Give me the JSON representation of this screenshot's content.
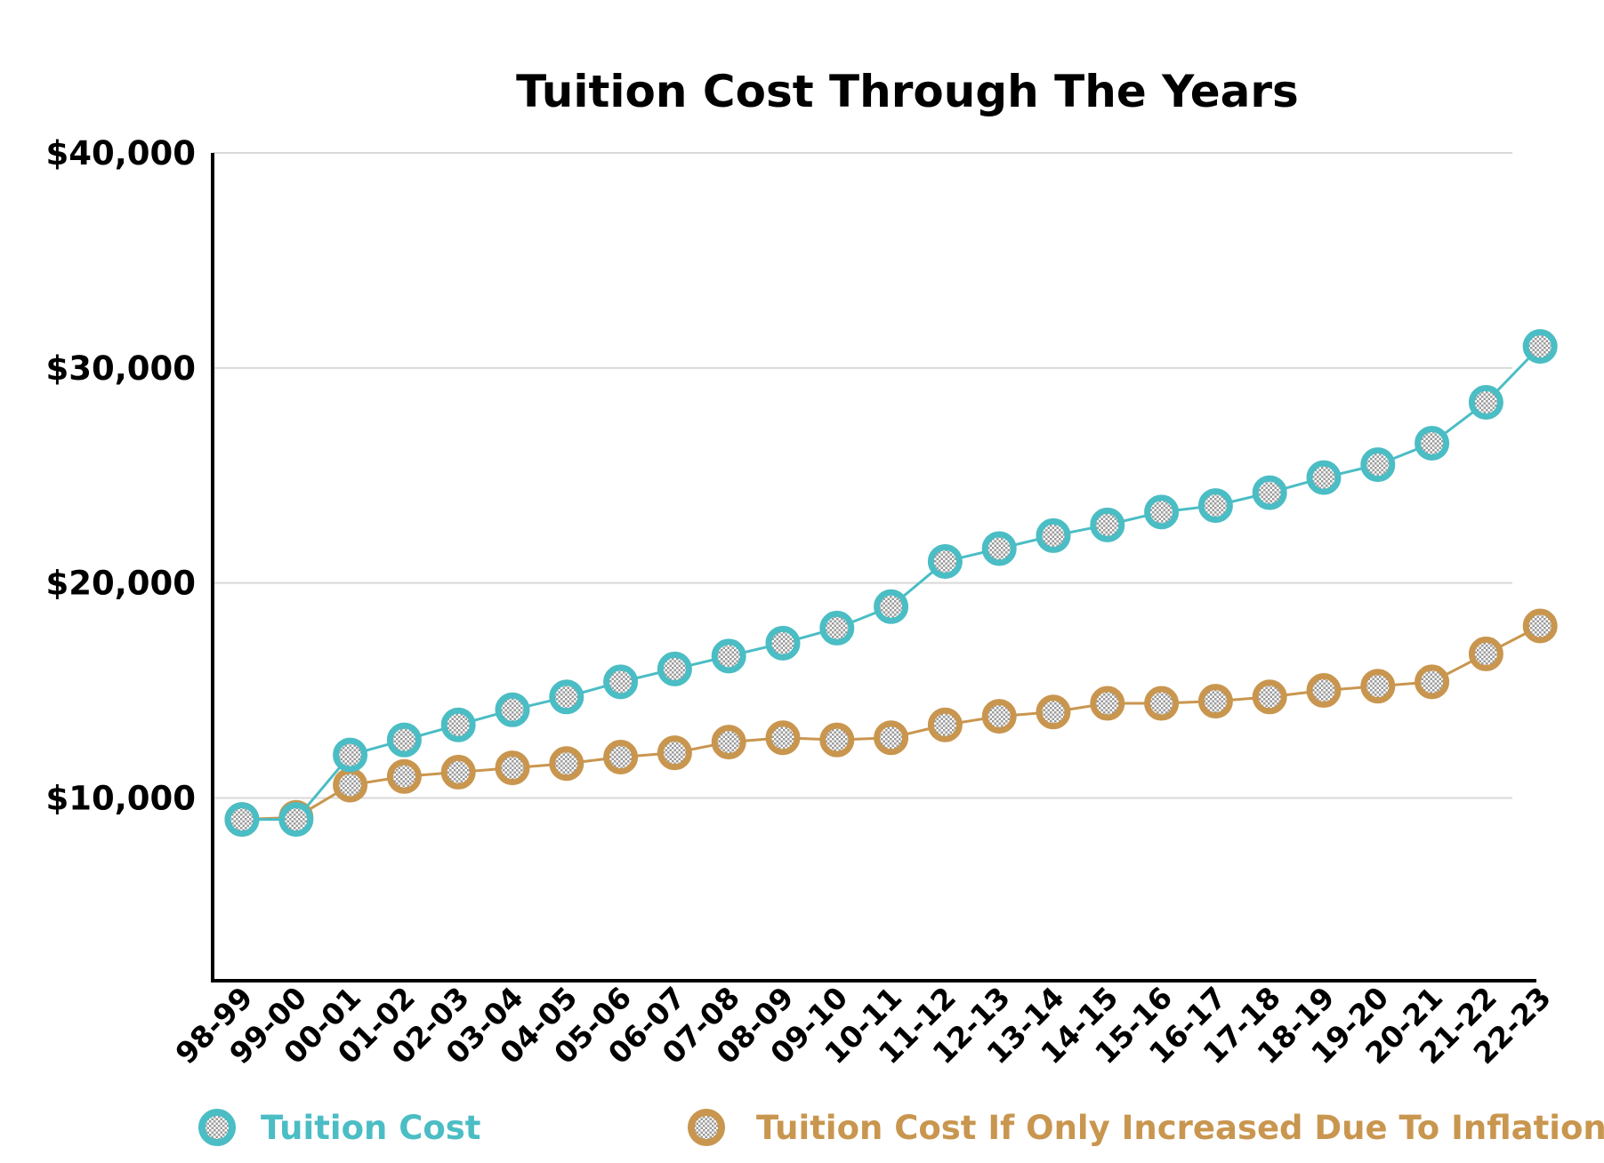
{
  "chart_data": {
    "type": "line",
    "title": "Tuition Cost Through The Years",
    "xlabel": "",
    "ylabel": "",
    "categories": [
      "98-99",
      "99-00",
      "00-01",
      "01-02",
      "02-03",
      "03-04",
      "04-05",
      "05-06",
      "06-07",
      "07-08",
      "08-09",
      "09-10",
      "10-11",
      "11-12",
      "12-13",
      "13-14",
      "14-15",
      "15-16",
      "16-17",
      "17-18",
      "18-19",
      "19-20",
      "20-21",
      "21-22",
      "22-23"
    ],
    "yticks": [
      {
        "value": 10000,
        "label": "$10,000"
      },
      {
        "value": 20000,
        "label": "$20,000"
      },
      {
        "value": 30000,
        "label": "$30,000"
      },
      {
        "value": 40000,
        "label": "$40,000"
      }
    ],
    "ylim": [
      1500,
      40000
    ],
    "grid": true,
    "legend_position": "bottom",
    "series": [
      {
        "name": "Tuition Cost",
        "color": "#4bbdc4",
        "values": [
          9000,
          9000,
          12000,
          12700,
          13400,
          14100,
          14700,
          15400,
          16000,
          16600,
          17200,
          17900,
          18900,
          21000,
          21600,
          22200,
          22700,
          23300,
          23600,
          24200,
          24900,
          25500,
          26500,
          28400,
          31000
        ]
      },
      {
        "name": "Tuition Cost If Only Increased Due To Inflation",
        "color": "#c9964f",
        "values": [
          9000,
          9100,
          10600,
          11000,
          11200,
          11400,
          11600,
          11900,
          12100,
          12600,
          12800,
          12700,
          12800,
          13400,
          13800,
          14000,
          14400,
          14400,
          14500,
          14700,
          15000,
          15200,
          15400,
          16700,
          18000
        ]
      }
    ]
  }
}
